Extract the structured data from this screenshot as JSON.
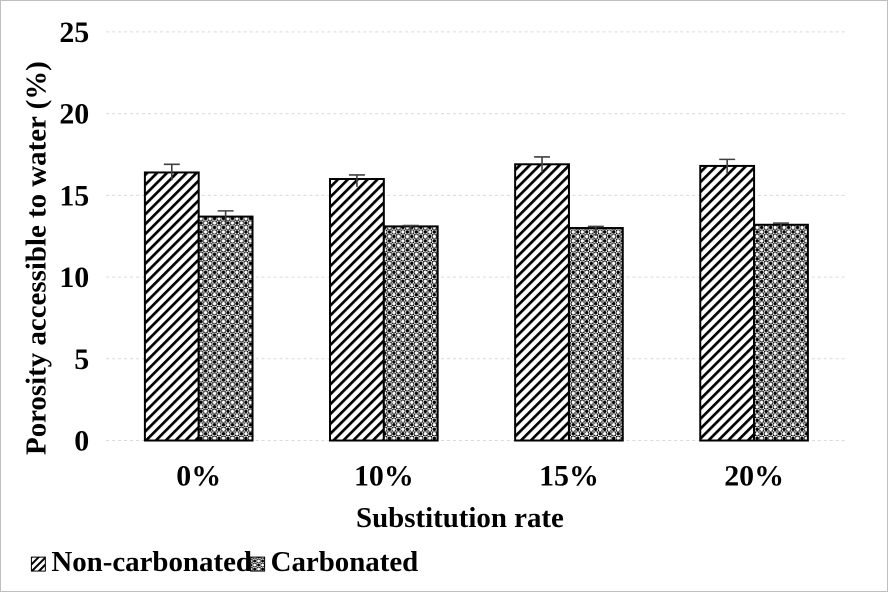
{
  "chart_data": {
    "type": "bar",
    "title": "",
    "categories": [
      "0%",
      "10%",
      "15%",
      "20%"
    ],
    "series": [
      {
        "name": "Non-carbonated",
        "pattern": "diagonal-hatch",
        "values": [
          16.4,
          16.0,
          16.9,
          16.8
        ],
        "errors": [
          0.5,
          0.25,
          0.45,
          0.4
        ]
      },
      {
        "name": "Carbonated",
        "pattern": "checkerboard-spheres",
        "values": [
          13.7,
          13.1,
          13.0,
          13.2
        ],
        "errors": [
          0.35,
          0.05,
          0.1,
          0.1
        ]
      }
    ],
    "xlabel": "Substitution rate",
    "ylabel": "Porosity accessible to water (%)",
    "ylim": [
      0,
      25
    ],
    "yticks": [
      0,
      5,
      10,
      15,
      20,
      25
    ],
    "grid": "horizontal-dashed",
    "legend_position": "bottom-left",
    "colors": {
      "bar_fill": "#ffffff",
      "bar_stroke": "#000000",
      "gridline": "#d9d9d9",
      "error_bar": "#404040",
      "text": "#000000",
      "frame_border": "#bfbfbf"
    }
  }
}
